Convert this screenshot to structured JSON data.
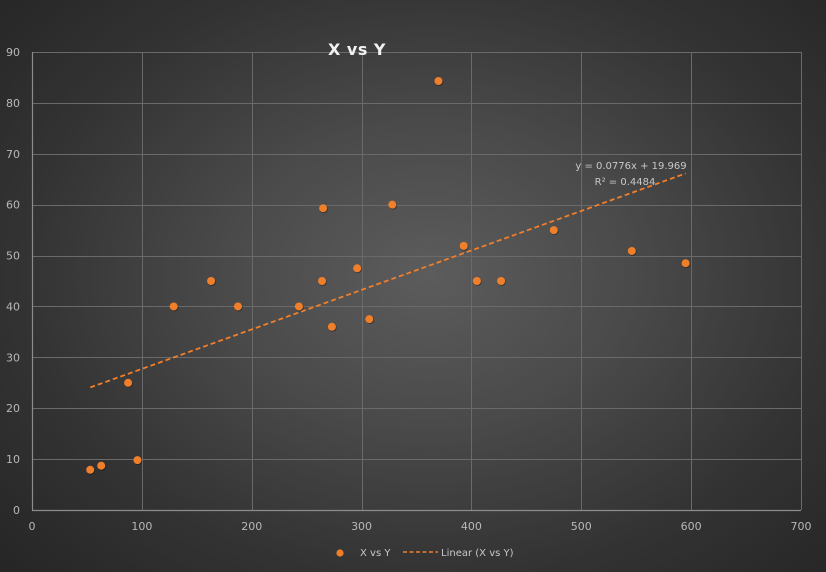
{
  "chart_data": {
    "type": "scatter",
    "title": "X vs Y",
    "xlabel": "",
    "ylabel": "",
    "xlim": [
      0,
      700
    ],
    "ylim": [
      0,
      90
    ],
    "x_ticks": [
      0,
      100,
      200,
      300,
      400,
      500,
      600,
      700
    ],
    "y_ticks": [
      0,
      10,
      20,
      30,
      40,
      50,
      60,
      70,
      80,
      90
    ],
    "grid": true,
    "legend_position": "bottom",
    "series": [
      {
        "name": "X vs Y",
        "type": "scatter",
        "color": "#f07f2b",
        "points": [
          [
            53,
            7.9
          ],
          [
            63,
            8.7
          ],
          [
            87.5,
            25
          ],
          [
            96,
            9.8
          ],
          [
            129,
            40
          ],
          [
            163,
            45
          ],
          [
            187.5,
            40
          ],
          [
            243,
            40
          ],
          [
            264,
            45
          ],
          [
            265,
            59.3
          ],
          [
            273,
            36
          ],
          [
            296,
            47.5
          ],
          [
            307,
            37.5
          ],
          [
            328,
            60
          ],
          [
            370,
            84.3
          ],
          [
            393,
            51.9
          ],
          [
            405,
            45
          ],
          [
            427,
            45
          ],
          [
            475,
            55
          ],
          [
            546,
            50.9
          ],
          [
            595,
            48.5
          ]
        ]
      },
      {
        "name": "Linear (X vs Y)",
        "type": "trendline",
        "style": "dashed",
        "color": "#f07f2b",
        "slope": 0.0776,
        "intercept": 19.969,
        "r_squared": 0.4484,
        "x_range": [
          53,
          595
        ]
      }
    ],
    "annotations": {
      "equation": "y = 0.0776x + 19.969",
      "r_squared": "R² = 0.4484"
    }
  },
  "legend": {
    "items": [
      {
        "label": "X vs Y",
        "marker": "dot"
      },
      {
        "label": "Linear (X vs Y)",
        "marker": "dashed-line"
      }
    ]
  },
  "colors": {
    "accent": "#f07f2b",
    "gridline": "#6a6a6a",
    "axis": "#8c8c8c",
    "text": "#b8b8b8"
  }
}
